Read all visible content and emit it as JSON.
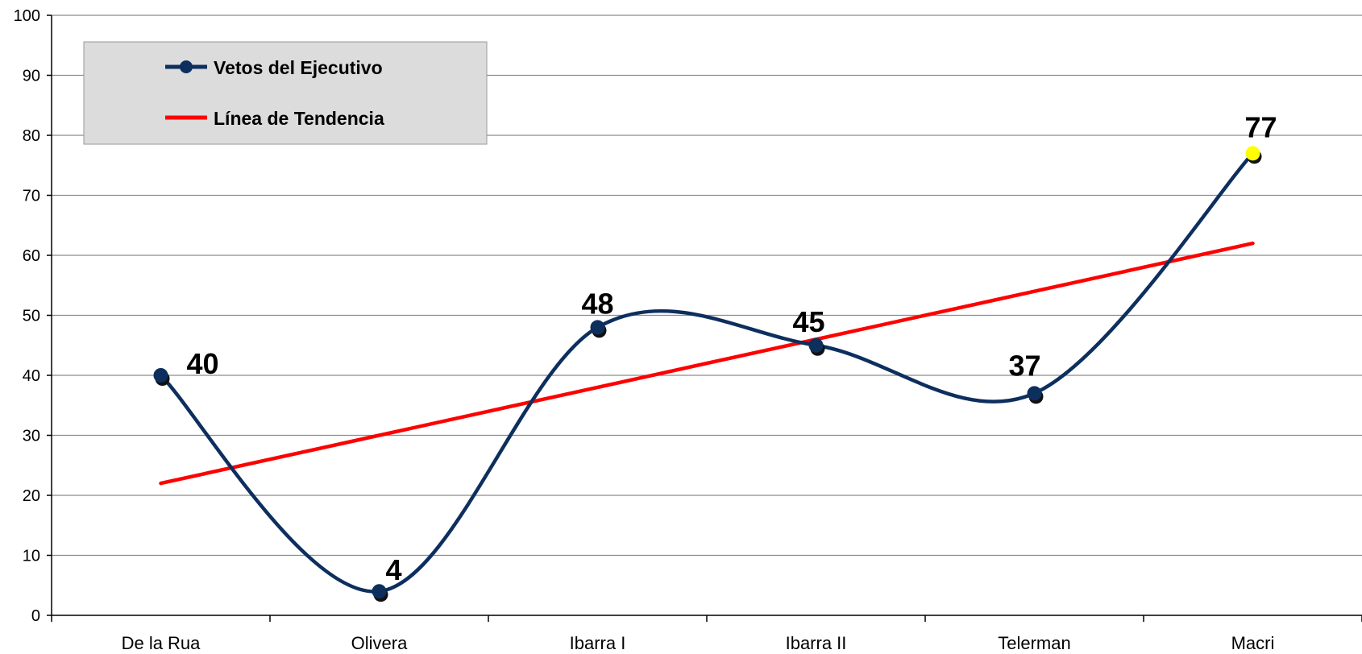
{
  "chart_data": {
    "type": "line",
    "categories": [
      "De la Rua",
      "Olivera",
      "Ibarra I",
      "Ibarra II",
      "Telerman",
      "Macri"
    ],
    "series": [
      {
        "name": "Vetos del Ejecutivo",
        "values": [
          40,
          4,
          48,
          45,
          37,
          77
        ],
        "color": "#0d2f5e",
        "smooth": true,
        "data_labels": [
          "40",
          "4",
          "48",
          "45",
          "37",
          "77"
        ]
      },
      {
        "name": "Línea de Tendencia",
        "values": [
          22,
          30,
          38,
          46,
          54,
          62
        ],
        "color": "#ff0000",
        "trendline": true
      }
    ],
    "highlight": {
      "index": 5,
      "color": "#ffff00"
    },
    "ylim": [
      0,
      100
    ],
    "yticks": [
      "0",
      "10",
      "20",
      "30",
      "40",
      "50",
      "60",
      "70",
      "80",
      "90",
      "100"
    ],
    "grid": true,
    "legend": {
      "position": "top-left",
      "background": "#dcdcdc"
    }
  }
}
